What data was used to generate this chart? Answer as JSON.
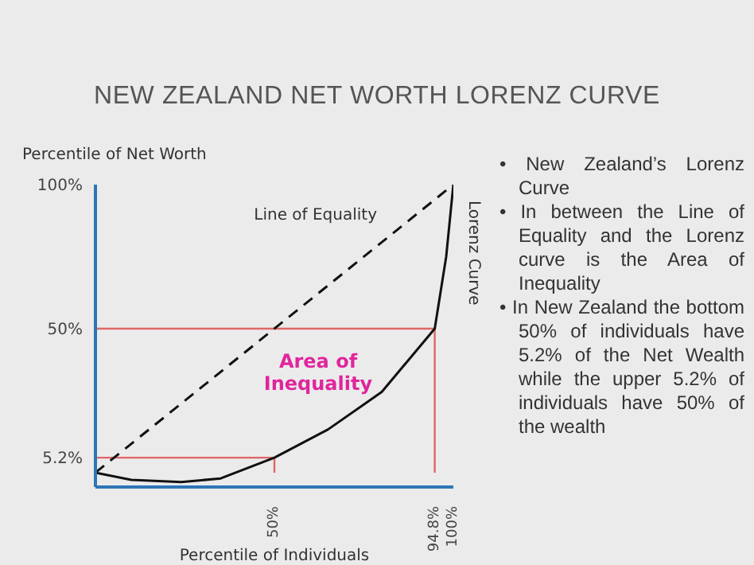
{
  "chart_data": {
    "type": "line",
    "title": "NEW ZEALAND NET WORTH LORENZ CURVE",
    "xlabel": "Percentile of Individuals",
    "ylabel": "Percentile of Net Worth",
    "xlim": [
      0,
      100
    ],
    "ylim": [
      -5,
      100
    ],
    "xticks": [
      {
        "value": 50,
        "label": "50%"
      },
      {
        "value": 94.8,
        "label": "94.8%"
      },
      {
        "value": 100,
        "label": "100%"
      }
    ],
    "yticks": [
      {
        "value": 5.2,
        "label": "5.2%"
      },
      {
        "value": 50,
        "label": "50%"
      },
      {
        "value": 100,
        "label": "100%"
      }
    ],
    "grid": false,
    "legend": false,
    "marker": "none",
    "series": [
      {
        "color": "#e06666",
        "line_style": "solid",
        "x": [
          0,
          50,
          50
        ],
        "values": [
          5.2,
          5.2,
          0
        ]
      },
      {
        "color": "#e06666",
        "line_style": "solid",
        "x": [
          0,
          94.8,
          94.8
        ],
        "values": [
          50,
          50,
          0
        ]
      },
      {
        "name": "Line of Equality",
        "color": "#111111",
        "line_style": "dashed",
        "x": [
          0,
          100
        ],
        "values": [
          0,
          100
        ]
      },
      {
        "name": "Lorenz Curve",
        "color": "#111111",
        "line_style": "solid",
        "x": [
          0,
          10,
          24,
          35,
          50,
          65,
          80,
          94.8,
          98,
          100
        ],
        "values": [
          0,
          -2.5,
          -3.3,
          -2,
          5.2,
          15,
          28,
          50,
          75,
          100
        ]
      }
    ],
    "annotations": [
      "Area of Inequality",
      "• New Zealand’s Lorenz Curve",
      "• In between the Line of Equality and the Lorenz curve is the Area of Inequality",
      "• In New Zealand the bottom 50% of individuals have 5.2% of the Net Wealth while the upper 5.2% of individuals have 50% of the wealth"
    ]
  }
}
